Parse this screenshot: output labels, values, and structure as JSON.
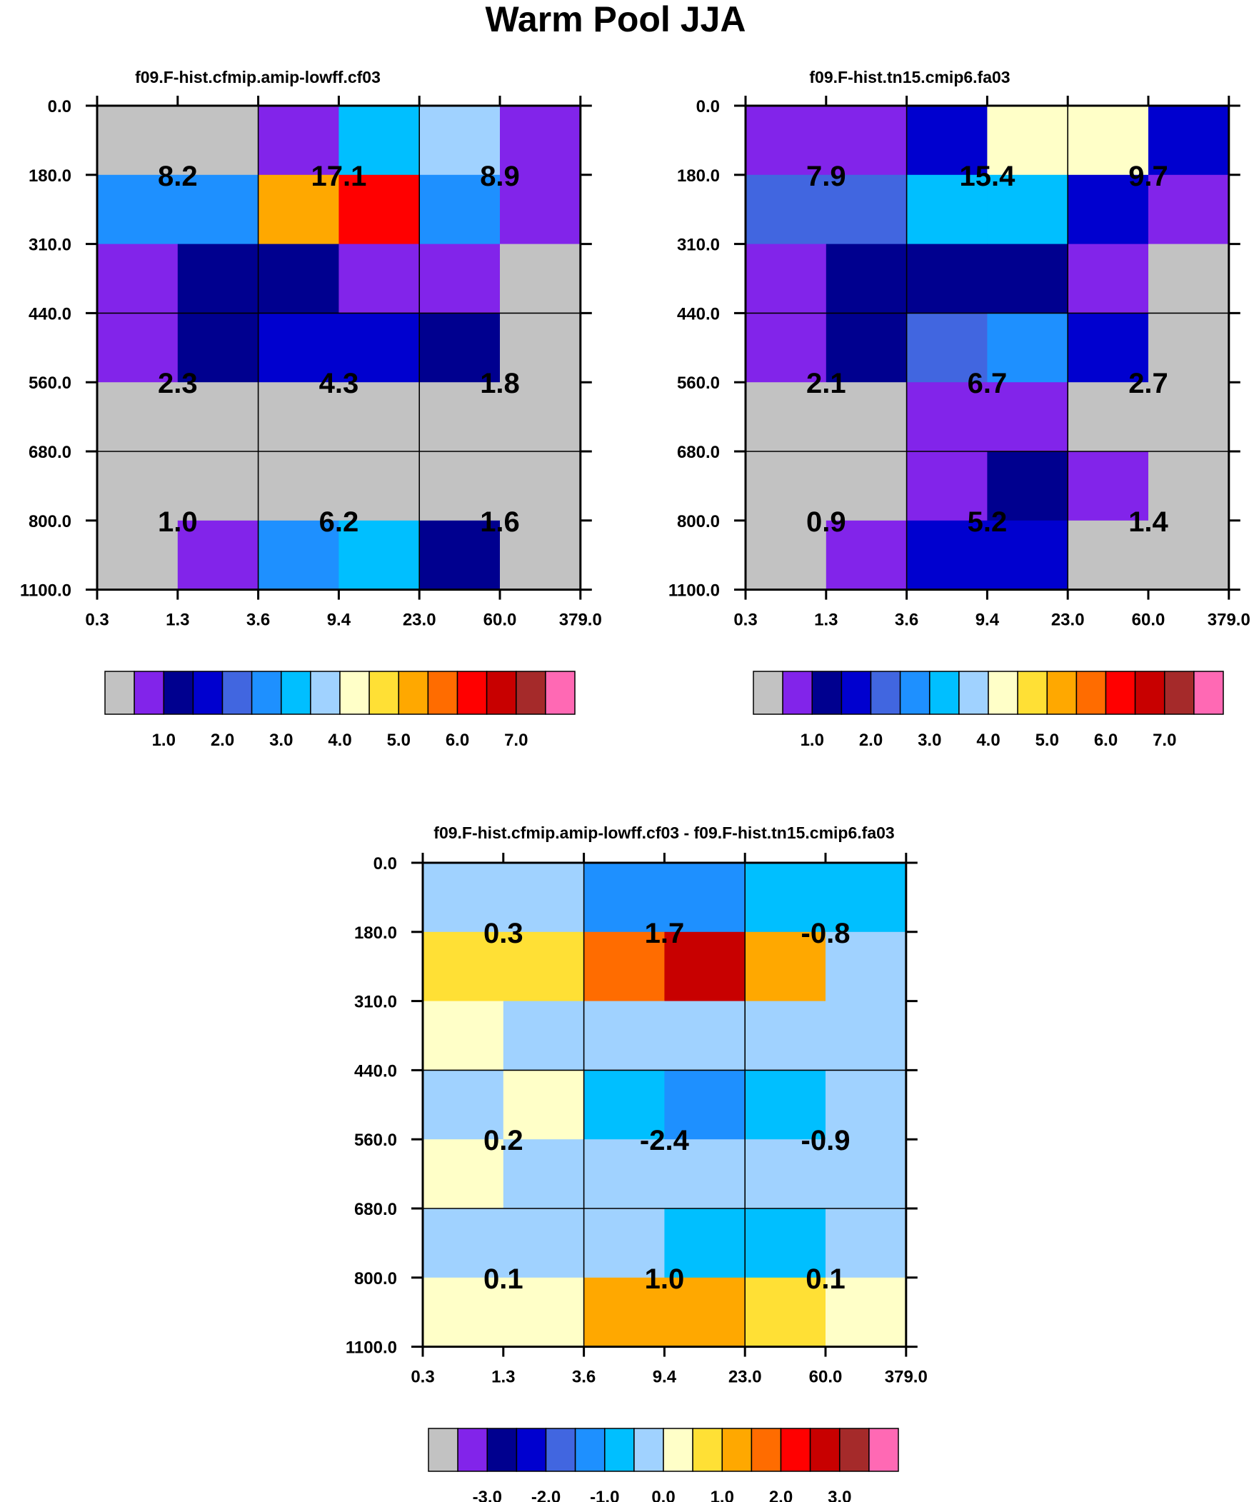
{
  "title": "Warm Pool JJA",
  "palette": {
    "gray": "#c2c2c2",
    "purple": "#8224ea",
    "navy": "#00008f",
    "darkblue": "#0000cf",
    "royal": "#4166e0",
    "dodger": "#1e90ff",
    "skyblue": "#00bfff",
    "lightblue": "#a0d2ff",
    "cream": "#ffffc8",
    "yellow": "#ffe035",
    "orange": "#ffa800",
    "darkorange": "#ff6c00",
    "red": "#ff0000",
    "crimson": "#c80000",
    "brown": "#a52a2a",
    "pink": "#ff69b4"
  },
  "colorbar_order": [
    "gray",
    "purple",
    "navy",
    "darkblue",
    "royal",
    "dodger",
    "skyblue",
    "lightblue",
    "cream",
    "yellow",
    "orange",
    "darkorange",
    "red",
    "crimson",
    "brown",
    "pink"
  ],
  "chart_data": [
    {
      "type": "heatmap",
      "id": "panel-cf03",
      "title": "f09.F-hist.cfmip.amip-lowff.cf03",
      "x_ticks": [
        "0.3",
        "1.3",
        "3.6",
        "9.4",
        "23.0",
        "60.0",
        "379.0"
      ],
      "y_ticks": [
        "0.0",
        "180.0",
        "310.0",
        "440.0",
        "560.0",
        "680.0",
        "800.0",
        "1100.0"
      ],
      "cells": [
        [
          "gray",
          "gray",
          "purple",
          "skyblue",
          "lightblue",
          "purple"
        ],
        [
          "dodger",
          "dodger",
          "orange",
          "red",
          "dodger",
          "purple"
        ],
        [
          "purple",
          "navy",
          "navy",
          "purple",
          "purple",
          "gray"
        ],
        [
          "purple",
          "navy",
          "darkblue",
          "darkblue",
          "navy",
          "gray"
        ],
        [
          "gray",
          "gray",
          "gray",
          "gray",
          "gray",
          "gray"
        ],
        [
          "gray",
          "gray",
          "gray",
          "gray",
          "gray",
          "gray"
        ],
        [
          "gray",
          "purple",
          "dodger",
          "skyblue",
          "navy",
          "gray"
        ]
      ],
      "labels": [
        [
          "8.2",
          "17.1",
          "8.9"
        ],
        [
          "2.3",
          "4.3",
          "1.8"
        ],
        [
          "1.0",
          "6.2",
          "1.6"
        ]
      ],
      "colorbar_ticks": [
        "1.0",
        "2.0",
        "3.0",
        "4.0",
        "5.0",
        "6.0",
        "7.0"
      ]
    },
    {
      "type": "heatmap",
      "id": "panel-fa03",
      "title": "f09.F-hist.tn15.cmip6.fa03",
      "x_ticks": [
        "0.3",
        "1.3",
        "3.6",
        "9.4",
        "23.0",
        "60.0",
        "379.0"
      ],
      "y_ticks": [
        "0.0",
        "180.0",
        "310.0",
        "440.0",
        "560.0",
        "680.0",
        "800.0",
        "1100.0"
      ],
      "cells": [
        [
          "purple",
          "purple",
          "darkblue",
          "cream",
          "cream",
          "darkblue"
        ],
        [
          "royal",
          "royal",
          "skyblue",
          "skyblue",
          "darkblue",
          "purple"
        ],
        [
          "purple",
          "navy",
          "navy",
          "navy",
          "purple",
          "gray"
        ],
        [
          "purple",
          "navy",
          "royal",
          "dodger",
          "darkblue",
          "gray"
        ],
        [
          "gray",
          "gray",
          "purple",
          "purple",
          "gray",
          "gray"
        ],
        [
          "gray",
          "gray",
          "purple",
          "navy",
          "purple",
          "gray"
        ],
        [
          "gray",
          "purple",
          "darkblue",
          "darkblue",
          "gray",
          "gray"
        ]
      ],
      "labels": [
        [
          "7.9",
          "15.4",
          "9.7"
        ],
        [
          "2.1",
          "6.7",
          "2.7"
        ],
        [
          "0.9",
          "5.2",
          "1.4"
        ]
      ],
      "colorbar_ticks": [
        "1.0",
        "2.0",
        "3.0",
        "4.0",
        "5.0",
        "6.0",
        "7.0"
      ]
    },
    {
      "type": "heatmap",
      "id": "panel-diff",
      "title": "f09.F-hist.cfmip.amip-lowff.cf03 - f09.F-hist.tn15.cmip6.fa03",
      "x_ticks": [
        "0.3",
        "1.3",
        "3.6",
        "9.4",
        "23.0",
        "60.0",
        "379.0"
      ],
      "y_ticks": [
        "0.0",
        "180.0",
        "310.0",
        "440.0",
        "560.0",
        "680.0",
        "800.0",
        "1100.0"
      ],
      "cells": [
        [
          "lightblue",
          "lightblue",
          "dodger",
          "dodger",
          "skyblue",
          "skyblue"
        ],
        [
          "yellow",
          "yellow",
          "darkorange",
          "crimson",
          "orange",
          "lightblue"
        ],
        [
          "cream",
          "lightblue",
          "lightblue",
          "lightblue",
          "lightblue",
          "lightblue"
        ],
        [
          "lightblue",
          "cream",
          "skyblue",
          "dodger",
          "skyblue",
          "lightblue"
        ],
        [
          "cream",
          "lightblue",
          "lightblue",
          "lightblue",
          "lightblue",
          "lightblue"
        ],
        [
          "lightblue",
          "lightblue",
          "lightblue",
          "skyblue",
          "skyblue",
          "lightblue"
        ],
        [
          "cream",
          "cream",
          "orange",
          "orange",
          "yellow",
          "cream"
        ]
      ],
      "labels": [
        [
          "0.3",
          "1.7",
          "-0.8"
        ],
        [
          "0.2",
          "-2.4",
          "-0.9"
        ],
        [
          "0.1",
          "1.0",
          "0.1"
        ]
      ],
      "colorbar_ticks": [
        "-3.0",
        "-2.0",
        "-1.0",
        "0.0",
        "1.0",
        "2.0",
        "3.0"
      ]
    }
  ]
}
